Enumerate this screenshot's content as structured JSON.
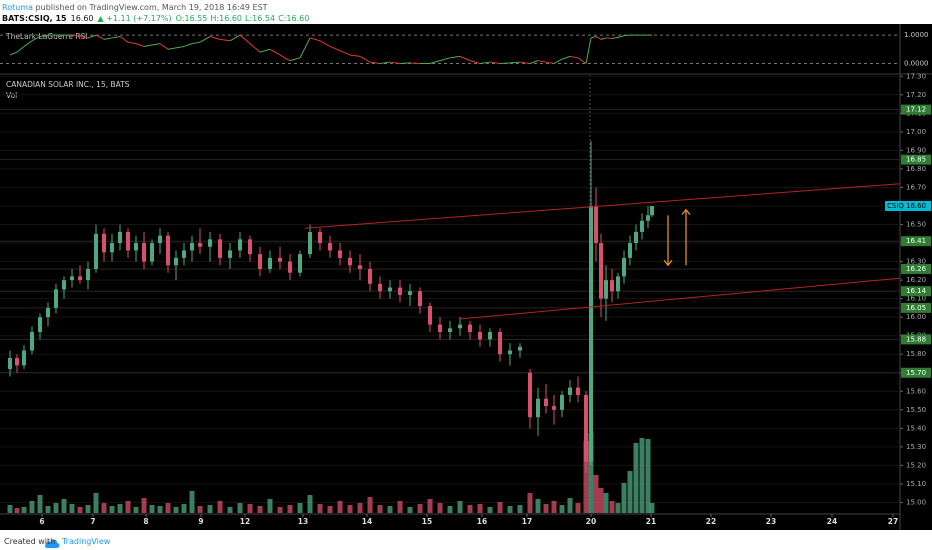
{
  "header": {
    "author": "Rotuma",
    "published": " published on TradingView.com, March 19, 2018 16:49 EST",
    "symbol": "BATS:CSIQ, 15",
    "price": "16.60",
    "change": "▲ +1.11 (+7.17%)",
    "ohlc": [
      "O:16.55",
      "H:16.60",
      "L:16.54",
      "C:16.60"
    ]
  },
  "chart_data": {
    "type": "candlestick",
    "title": "CANADIAN SOLAR INC., 15, BATS",
    "volume_label": "Vol",
    "up_color": "#4fa882",
    "down_color": "#d9506a",
    "x": [
      1.0,
      1.7,
      2.4,
      3.2,
      4.0,
      4.8,
      5.6,
      6.4,
      7.2,
      8.0,
      8.8,
      9.6,
      10.4,
      11.2,
      12.0,
      12.8,
      13.6,
      14.4,
      15.2,
      16.0,
      16.8,
      17.6,
      18.4,
      19.2,
      20.0,
      21.0,
      22.0,
      23.0,
      24.0,
      25.0,
      26.0,
      27.0,
      28.0,
      29.0,
      30.0,
      31.0,
      32.0,
      33.0,
      34.0,
      35.0,
      36.0,
      37.0,
      38.0,
      39.0,
      40.0,
      41.0,
      42.0,
      43.0,
      44.0,
      45.0,
      46.0,
      47.0,
      48.0,
      49.0,
      50.0,
      51.0,
      52.0,
      53.0,
      53.8,
      54.6,
      55.4,
      56.2,
      57.0,
      57.8,
      58.6,
      59.1,
      59.6,
      60.1,
      60.6,
      61.2,
      61.8,
      62.4,
      63.0,
      63.6,
      64.2,
      64.8,
      65.2
    ],
    "open": [
      15.72,
      15.78,
      15.74,
      15.82,
      15.92,
      16.0,
      16.05,
      16.15,
      16.2,
      16.22,
      16.2,
      16.26,
      16.45,
      16.35,
      16.4,
      16.46,
      16.36,
      16.4,
      16.3,
      16.4,
      16.44,
      16.28,
      16.32,
      16.36,
      16.4,
      16.38,
      16.42,
      16.32,
      16.36,
      16.42,
      16.34,
      16.26,
      16.32,
      16.3,
      16.24,
      16.34,
      16.46,
      16.4,
      16.36,
      16.32,
      16.28,
      16.26,
      16.18,
      16.14,
      16.16,
      16.12,
      16.14,
      16.06,
      15.96,
      15.92,
      15.94,
      15.96,
      15.92,
      15.88,
      15.92,
      15.8,
      15.82,
      15.7,
      15.46,
      15.56,
      15.52,
      15.5,
      15.58,
      15.62,
      15.58,
      15.22,
      16.6,
      16.4,
      16.1,
      16.2,
      16.14,
      16.22,
      16.32,
      16.4,
      16.46,
      16.52,
      16.55
    ],
    "high": [
      15.82,
      15.8,
      15.85,
      15.95,
      16.02,
      16.08,
      16.18,
      16.22,
      16.26,
      16.28,
      16.3,
      16.5,
      16.48,
      16.45,
      16.5,
      16.48,
      16.44,
      16.46,
      16.42,
      16.48,
      16.46,
      16.36,
      16.4,
      16.44,
      16.48,
      16.46,
      16.45,
      16.4,
      16.46,
      16.44,
      16.38,
      16.36,
      16.38,
      16.34,
      16.36,
      16.5,
      16.48,
      16.44,
      16.4,
      16.36,
      16.34,
      16.3,
      16.22,
      16.2,
      16.2,
      16.18,
      16.16,
      16.08,
      16.0,
      15.98,
      16.0,
      15.98,
      15.96,
      15.94,
      15.94,
      15.86,
      15.86,
      15.72,
      15.62,
      15.64,
      15.58,
      15.6,
      15.66,
      15.68,
      15.6,
      16.95,
      16.7,
      16.45,
      16.28,
      16.26,
      16.24,
      16.36,
      16.44,
      16.5,
      16.56,
      16.6,
      16.6
    ],
    "low": [
      15.68,
      15.7,
      15.72,
      15.8,
      15.88,
      15.95,
      16.02,
      16.1,
      16.16,
      16.18,
      16.15,
      16.24,
      16.3,
      16.3,
      16.36,
      16.32,
      16.3,
      16.26,
      16.28,
      16.34,
      16.24,
      16.2,
      16.28,
      16.3,
      16.34,
      16.3,
      16.28,
      16.26,
      16.32,
      16.3,
      16.22,
      16.24,
      16.26,
      16.2,
      16.22,
      16.32,
      16.36,
      16.32,
      16.28,
      16.24,
      16.2,
      16.14,
      16.1,
      16.1,
      16.08,
      16.06,
      16.02,
      15.92,
      15.88,
      15.88,
      15.9,
      15.88,
      15.84,
      15.84,
      15.76,
      15.74,
      15.78,
      15.4,
      15.36,
      15.48,
      15.42,
      15.46,
      15.54,
      15.54,
      15.16,
      15.2,
      16.3,
      16.0,
      15.98,
      16.08,
      16.1,
      16.18,
      16.28,
      16.36,
      16.42,
      16.48,
      16.54
    ],
    "close": [
      15.78,
      15.74,
      15.82,
      15.92,
      16.0,
      16.05,
      16.15,
      16.2,
      16.22,
      16.2,
      16.26,
      16.45,
      16.35,
      16.4,
      16.46,
      16.36,
      16.4,
      16.3,
      16.4,
      16.44,
      16.28,
      16.32,
      16.36,
      16.4,
      16.38,
      16.42,
      16.32,
      16.36,
      16.42,
      16.34,
      16.26,
      16.32,
      16.3,
      16.24,
      16.34,
      16.46,
      16.4,
      16.36,
      16.32,
      16.28,
      16.26,
      16.18,
      16.14,
      16.16,
      16.12,
      16.14,
      16.06,
      15.96,
      15.92,
      15.94,
      15.96,
      15.92,
      15.88,
      15.92,
      15.8,
      15.82,
      15.84,
      15.46,
      15.56,
      15.52,
      15.5,
      15.58,
      15.62,
      15.58,
      15.22,
      16.6,
      16.4,
      16.1,
      16.2,
      16.14,
      16.22,
      16.32,
      16.4,
      16.46,
      16.52,
      16.55,
      16.6
    ],
    "volume": [
      8,
      5,
      6,
      12,
      18,
      7,
      10,
      14,
      9,
      6,
      8,
      20,
      10,
      7,
      9,
      12,
      6,
      15,
      8,
      7,
      10,
      6,
      9,
      22,
      7,
      8,
      12,
      6,
      10,
      9,
      7,
      14,
      6,
      8,
      10,
      18,
      9,
      7,
      12,
      8,
      10,
      16,
      8,
      7,
      12,
      6,
      9,
      14,
      10,
      7,
      12,
      8,
      9,
      6,
      11,
      7,
      8,
      20,
      14,
      9,
      12,
      8,
      15,
      10,
      72,
      80,
      38,
      25,
      20,
      12,
      10,
      30,
      42,
      70,
      75,
      74,
      10
    ],
    "xlim": [
      0,
      90
    ],
    "xticks": [
      {
        "value": 4.2,
        "label": "6"
      },
      {
        "value": 9.3,
        "label": "7"
      },
      {
        "value": 14.6,
        "label": "8"
      },
      {
        "value": 20.1,
        "label": "9"
      },
      {
        "value": 24.5,
        "label": "12"
      },
      {
        "value": 30.3,
        "label": "13"
      },
      {
        "value": 36.7,
        "label": "14"
      },
      {
        "value": 42.7,
        "label": "15"
      },
      {
        "value": 48.2,
        "label": "16"
      },
      {
        "value": 52.7,
        "label": "17"
      },
      {
        "value": 59.1,
        "label": "20"
      },
      {
        "value": 65.1,
        "label": "21"
      },
      {
        "value": 71.1,
        "label": "22"
      },
      {
        "value": 77.1,
        "label": "23"
      },
      {
        "value": 83.2,
        "label": "24"
      },
      {
        "value": 89.3,
        "label": "27"
      }
    ],
    "ylim": [
      14.9,
      17.35
    ],
    "yticks": [
      {
        "value": 15.0,
        "label": "15.00"
      },
      {
        "value": 15.1,
        "label": "15.10"
      },
      {
        "value": 15.2,
        "label": "15.20"
      },
      {
        "value": 15.3,
        "label": "15.30"
      },
      {
        "value": 15.4,
        "label": "15.40"
      },
      {
        "value": 15.5,
        "label": "15.50"
      },
      {
        "value": 15.6,
        "label": "15.60"
      },
      {
        "value": 15.7,
        "label": "15.70"
      },
      {
        "value": 15.8,
        "label": "15.80"
      },
      {
        "value": 15.9,
        "label": "15.90"
      },
      {
        "value": 16.0,
        "label": "16.00"
      },
      {
        "value": 16.1,
        "label": "16.10"
      },
      {
        "value": 16.2,
        "label": "16.20"
      },
      {
        "value": 16.3,
        "label": "16.30"
      },
      {
        "value": 16.4,
        "label": "16.40"
      },
      {
        "value": 16.5,
        "label": "16.50"
      },
      {
        "value": 16.6,
        "label": "16.60"
      },
      {
        "value": 16.7,
        "label": "16.70"
      },
      {
        "value": 16.8,
        "label": "16.80"
      },
      {
        "value": 16.9,
        "label": "16.90"
      },
      {
        "value": 17.0,
        "label": "17.00"
      },
      {
        "value": 17.1,
        "label": "17.10"
      },
      {
        "value": 17.2,
        "label": "17.20"
      },
      {
        "value": 17.3,
        "label": "17.30"
      }
    ],
    "price_levels": [
      17.12,
      16.85,
      16.41,
      16.26,
      16.14,
      16.05,
      15.88,
      {
        "value": 15.7,
        "label": "15.70"
      }
    ],
    "level_color": "#2e7d32",
    "last_price": {
      "symbol": "CSIQ",
      "value": 16.6,
      "label": "16.60",
      "color": "#00bcd4"
    },
    "trend_lines": [
      {
        "x": [
          30.5,
          90
        ],
        "y": [
          16.48,
          16.72
        ],
        "color": "#b3261e"
      },
      {
        "x": [
          46,
          90
        ],
        "y": [
          15.99,
          16.21
        ],
        "color": "#b3261e"
      }
    ],
    "arrows": [
      {
        "x": 66.8,
        "from": 16.55,
        "to": 16.28,
        "color": "#f59a23"
      },
      {
        "x": 68.6,
        "from": 16.28,
        "to": 16.58,
        "color": "#f59a23"
      }
    ],
    "indicator": {
      "name": "TheLark LaGuerre RSI",
      "up_color": "#4caf50",
      "down_color": "#e53935",
      "values": [
        0.3,
        0.4,
        0.6,
        0.8,
        0.95,
        1,
        1,
        1,
        1,
        0.95,
        0.9,
        1,
        0.85,
        0.9,
        0.95,
        0.75,
        0.7,
        0.6,
        0.65,
        0.7,
        0.5,
        0.55,
        0.6,
        0.7,
        0.75,
        0.95,
        0.85,
        0.8,
        1,
        0.7,
        0.4,
        0.5,
        0.3,
        0.1,
        0.2,
        0.9,
        0.8,
        0.6,
        0.45,
        0.3,
        0.25,
        0.05,
        0,
        0.05,
        0,
        0.02,
        0,
        0,
        0.1,
        0.2,
        0.25,
        0.1,
        0,
        0.05,
        0,
        0.02,
        0.05,
        0,
        0.1,
        0.05,
        0,
        0.15,
        0.25,
        0.2,
        0,
        0.9,
        0.95,
        0.85,
        0.9,
        0.88,
        0.92,
        0.98,
        1,
        1,
        1,
        1,
        1
      ],
      "ylim": [
        -0.3,
        1.25
      ],
      "yticks": [
        {
          "value": 1,
          "label": "1.0000"
        },
        {
          "value": 0,
          "label": "0.0000"
        }
      ]
    }
  },
  "footer": {
    "text": "Created with",
    "brand": "TradingView"
  }
}
